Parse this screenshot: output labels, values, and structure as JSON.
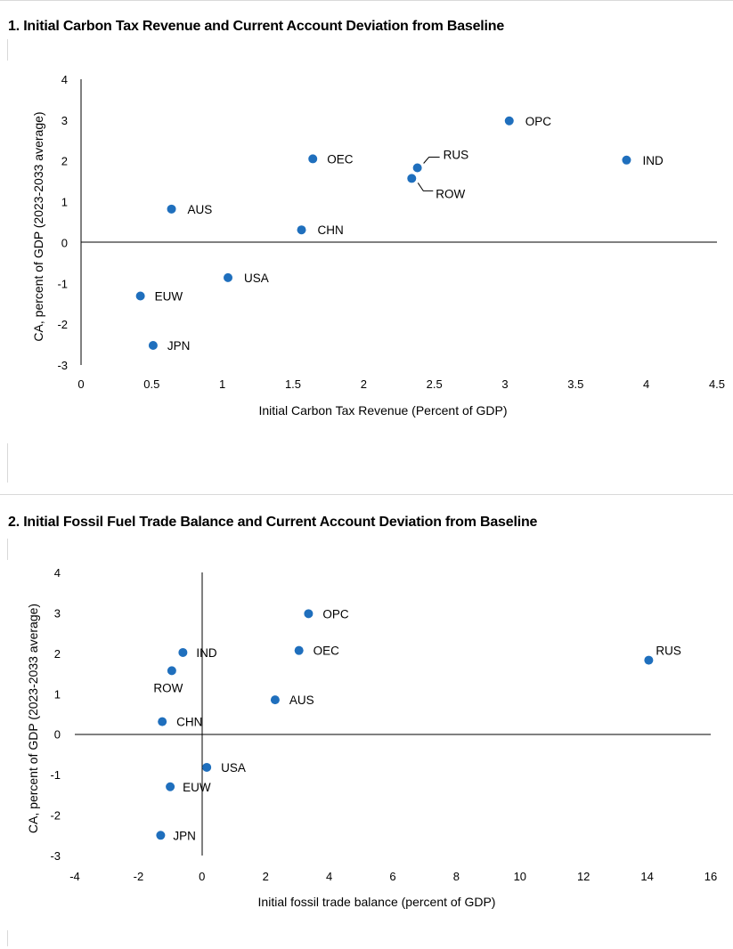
{
  "chart_data": [
    {
      "type": "scatter",
      "title": "1. Initial Carbon Tax Revenue and Current Account Deviation from Baseline",
      "xlabel": "Initial Carbon Tax Revenue (Percent of GDP)",
      "ylabel": "CA, percent of GDP (2023-2033 average)",
      "xlim": [
        0,
        4.5
      ],
      "ylim": [
        -3,
        4
      ],
      "xticks": [
        "0",
        "0.5",
        "1",
        "1.5",
        "2",
        "2.5",
        "3",
        "3.5",
        "4",
        "4.5"
      ],
      "yticks": [
        "-3",
        "-2",
        "-1",
        "0",
        "1",
        "2",
        "3",
        "4"
      ],
      "marker_color": "#1f6fbd",
      "points": [
        {
          "label": "OPC",
          "x": 3.03,
          "y": 2.98
        },
        {
          "label": "IND",
          "x": 3.86,
          "y": 2.02
        },
        {
          "label": "OEC",
          "x": 1.64,
          "y": 2.05
        },
        {
          "label": "RUS",
          "x": 2.38,
          "y": 1.83
        },
        {
          "label": "ROW",
          "x": 2.34,
          "y": 1.57
        },
        {
          "label": "AUS",
          "x": 0.64,
          "y": 0.82
        },
        {
          "label": "CHN",
          "x": 1.56,
          "y": 0.31
        },
        {
          "label": "USA",
          "x": 1.04,
          "y": -0.86
        },
        {
          "label": "EUW",
          "x": 0.42,
          "y": -1.31
        },
        {
          "label": "JPN",
          "x": 0.51,
          "y": -2.52
        }
      ]
    },
    {
      "type": "scatter",
      "title": "2. Initial Fossil Fuel Trade Balance and Current Account Deviation from Baseline",
      "xlabel": "Initial fossil trade balance (percent of GDP)",
      "ylabel": "CA, percent of GDP (2023-2033 average)",
      "xlim": [
        -4,
        16
      ],
      "ylim": [
        -3,
        4
      ],
      "xticks": [
        "-4",
        "-2",
        "0",
        "2",
        "4",
        "6",
        "8",
        "10",
        "12",
        "14",
        "16"
      ],
      "yticks": [
        "-3",
        "-2",
        "-1",
        "0",
        "1",
        "2",
        "3",
        "4"
      ],
      "marker_color": "#1f6fbd",
      "points": [
        {
          "label": "OPC",
          "x": 3.35,
          "y": 2.98
        },
        {
          "label": "OEC",
          "x": 3.05,
          "y": 2.07
        },
        {
          "label": "IND",
          "x": -0.6,
          "y": 2.02
        },
        {
          "label": "RUS",
          "x": 14.05,
          "y": 1.83
        },
        {
          "label": "ROW",
          "x": -0.95,
          "y": 1.57
        },
        {
          "label": "AUS",
          "x": 2.3,
          "y": 0.85
        },
        {
          "label": "CHN",
          "x": -1.25,
          "y": 0.31
        },
        {
          "label": "USA",
          "x": 0.15,
          "y": -0.82
        },
        {
          "label": "EUW",
          "x": -1.0,
          "y": -1.3
        },
        {
          "label": "JPN",
          "x": -1.3,
          "y": -2.5
        }
      ]
    }
  ]
}
